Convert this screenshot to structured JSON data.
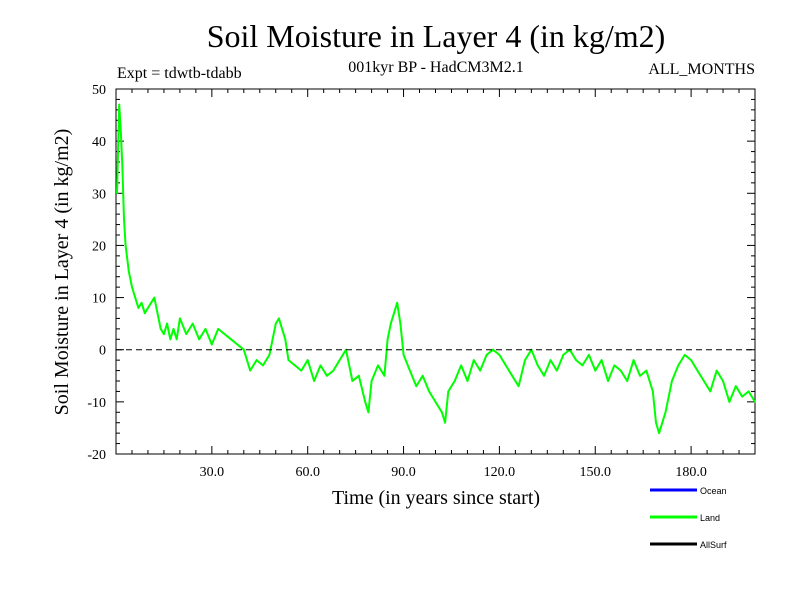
{
  "chart_data": {
    "type": "line",
    "title": "Soil Moisture in Layer 4 (in kg/m2)",
    "subtitle": "001kyr BP - HadCM3M2.1",
    "expt_label": "Expt = tdwtb-tdabb",
    "months_label": "ALL_MONTHS",
    "xlabel": "Time (in years since start)",
    "ylabel": "Soil Moisture in Layer 4 (in kg/m2)",
    "xlim": [
      0,
      200
    ],
    "ylim": [
      -20,
      50
    ],
    "x_ticks": [
      30,
      60,
      90,
      120,
      150,
      180
    ],
    "x_tick_labels": [
      "30.0",
      "60.0",
      "90.0",
      "120.0",
      "150.0",
      "180.0"
    ],
    "y_ticks": [
      -20,
      -10,
      0,
      10,
      20,
      30,
      40,
      50
    ],
    "y_tick_labels": [
      "-20",
      "-10",
      "0",
      "10",
      "20",
      "30",
      "40",
      "50"
    ],
    "reference_line": 0,
    "legend": [
      {
        "name": "Ocean",
        "color": "#0000ff"
      },
      {
        "name": "Land",
        "color": "#00ff00"
      },
      {
        "name": "AllSurf",
        "color": "#000000"
      }
    ],
    "series": [
      {
        "name": "Land",
        "color": "#00ff00",
        "x": [
          0.3,
          1,
          1.5,
          2,
          2.5,
          3,
          4,
          5,
          6,
          7,
          8,
          9,
          10,
          11,
          12,
          13,
          14,
          15,
          16,
          17,
          18,
          19,
          20,
          22,
          24,
          26,
          28,
          30,
          32,
          34,
          36,
          38,
          40,
          42,
          44,
          46,
          48,
          50,
          51,
          52,
          53,
          54,
          56,
          58,
          60,
          62,
          64,
          66,
          68,
          70,
          72,
          74,
          76,
          78,
          79,
          80,
          82,
          84,
          85,
          86,
          87,
          88,
          89,
          90,
          92,
          94,
          96,
          98,
          100,
          102,
          103,
          104,
          106,
          108,
          110,
          112,
          114,
          116,
          118,
          120,
          122,
          124,
          126,
          128,
          130,
          132,
          134,
          136,
          138,
          140,
          142,
          144,
          146,
          148,
          150,
          152,
          154,
          156,
          158,
          160,
          162,
          164,
          166,
          168,
          169,
          170,
          172,
          174,
          176,
          178,
          180,
          182,
          184,
          186,
          188,
          190,
          192,
          194,
          196,
          198,
          200
        ],
        "values": [
          30,
          47,
          42,
          35,
          25,
          20,
          15,
          12,
          10,
          8,
          9,
          7,
          8,
          9,
          10,
          7,
          4,
          3,
          5,
          2,
          4,
          2,
          6,
          3,
          5,
          2,
          4,
          1,
          4,
          3,
          2,
          1,
          0,
          -4,
          -2,
          -3,
          -1,
          5,
          6,
          4,
          2,
          -2,
          -3,
          -4,
          -2,
          -6,
          -3,
          -5,
          -4,
          -2,
          0,
          -6,
          -5,
          -10,
          -12,
          -6,
          -3,
          -5,
          2,
          5,
          7,
          9,
          5,
          -1,
          -4,
          -7,
          -5,
          -8,
          -10,
          -12,
          -14,
          -8,
          -6,
          -3,
          -6,
          -2,
          -4,
          -1,
          0,
          -1,
          -3,
          -5,
          -7,
          -2,
          0,
          -3,
          -5,
          -2,
          -4,
          -1,
          0,
          -2,
          -3,
          -1,
          -4,
          -2,
          -6,
          -3,
          -4,
          -6,
          -2,
          -5,
          -4,
          -8,
          -14,
          -16,
          -12,
          -6,
          -3,
          -1,
          -2,
          -4,
          -6,
          -8,
          -4,
          -6,
          -10,
          -7,
          -9,
          -8,
          -10
        ]
      }
    ]
  }
}
